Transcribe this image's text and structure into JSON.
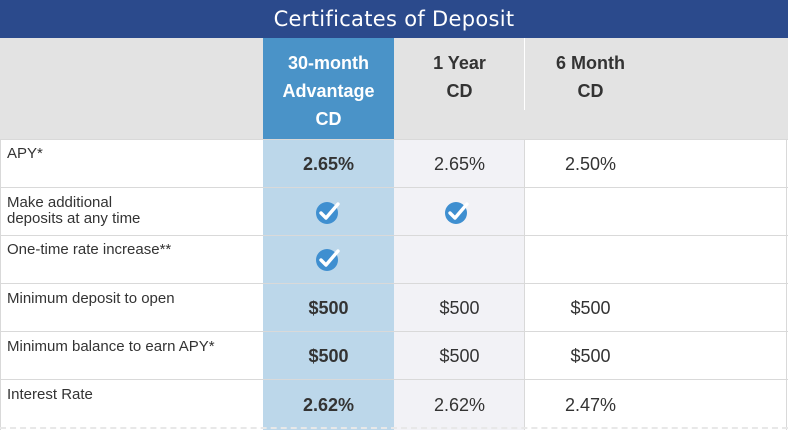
{
  "title": "Certificates of Deposit",
  "columns": {
    "featured": [
      "30-month",
      "Advantage",
      "CD"
    ],
    "one_year": [
      "1 Year",
      "CD"
    ],
    "six_month": [
      "6 Month",
      "CD"
    ]
  },
  "rows": [
    {
      "label": [
        "APY*"
      ],
      "featured": "2.65%",
      "one_year": "2.65%",
      "six_month": "2.50%"
    },
    {
      "label": [
        "Make additional",
        "deposits at any time"
      ],
      "featured": "check-icon",
      "one_year": "check-icon",
      "six_month": ""
    },
    {
      "label": [
        "One-time rate increase**"
      ],
      "featured": "check-icon",
      "one_year": "",
      "six_month": ""
    },
    {
      "label": [
        "Minimum deposit to open"
      ],
      "featured": "$500",
      "one_year": "$500",
      "six_month": "$500"
    },
    {
      "label": [
        "Minimum balance to earn APY*"
      ],
      "featured": "$500",
      "one_year": "$500",
      "six_month": "$500"
    },
    {
      "label": [
        "Interest Rate"
      ],
      "featured": "2.62%",
      "one_year": "2.62%",
      "six_month": "2.47%"
    }
  ],
  "colors": {
    "title_bar": "#2b4a8c",
    "featured_header": "#4a93c8",
    "featured_column": "#bcd7ea",
    "header_band": "#e3e3e3",
    "check_icon": "#3f8fd0"
  }
}
